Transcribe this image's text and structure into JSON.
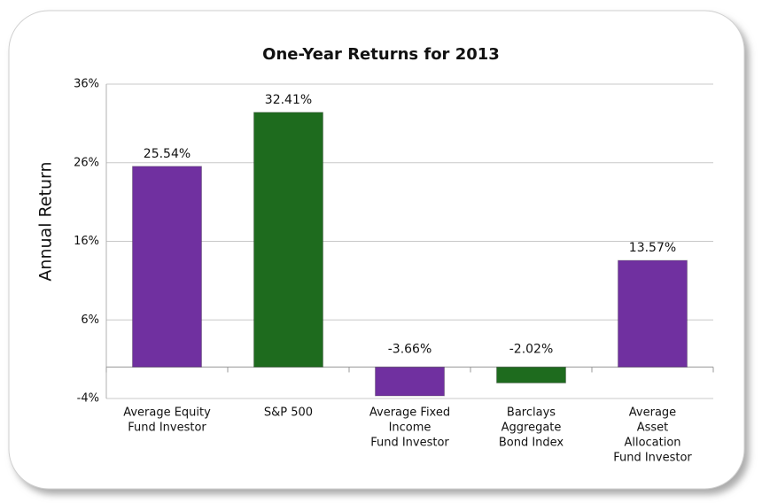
{
  "chart_data": {
    "type": "bar",
    "title": "One-Year Returns for 2013",
    "y_label": "Annual Return",
    "categories": [
      [
        "Average Equity",
        "Fund Investor"
      ],
      [
        "S&P 500"
      ],
      [
        "Average Fixed",
        "Income",
        "Fund Investor"
      ],
      [
        "Barclays",
        "Aggregate",
        "Bond Index"
      ],
      [
        "Average",
        "Asset",
        "Allocation",
        "Fund Investor"
      ]
    ],
    "values": [
      25.54,
      32.41,
      -3.66,
      -2.02,
      13.57
    ],
    "value_labels": [
      "25.54%",
      "32.41%",
      "-3.66%",
      "-2.02%",
      "13.57%"
    ],
    "colors": [
      "#7030a0",
      "#1e6b1e",
      "#7030a0",
      "#1e6b1e",
      "#7030a0"
    ],
    "ylim": [
      -4,
      36
    ],
    "yticks": [
      {
        "value": -4,
        "label": "-4%"
      },
      {
        "value": 6,
        "label": "6%"
      },
      {
        "value": 16,
        "label": "16%"
      },
      {
        "value": 26,
        "label": "26%"
      },
      {
        "value": 36,
        "label": "36%"
      }
    ],
    "grid": true
  }
}
